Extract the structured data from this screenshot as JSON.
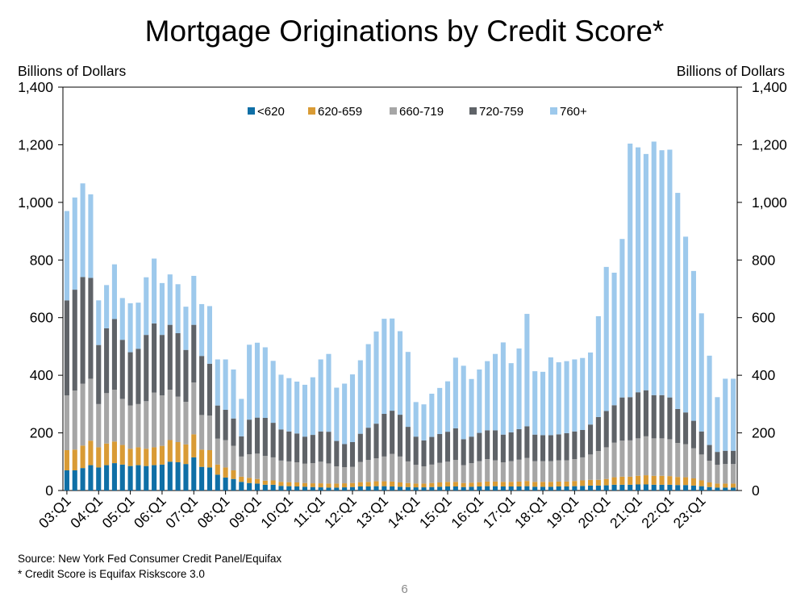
{
  "chart_data": {
    "type": "bar",
    "stacked": true,
    "title": "Mortgage Originations by Credit Score*",
    "ylabel_left": "Billions of Dollars",
    "ylabel_right": "Billions of Dollars",
    "ylim": [
      0,
      1400
    ],
    "yticks": [
      0,
      200,
      400,
      600,
      800,
      1000,
      1200,
      1400
    ],
    "ytick_labels": [
      "0",
      "200",
      "400",
      "600",
      "800",
      "1,000",
      "1,200",
      "1,400"
    ],
    "grid": false,
    "legend_position": "top-center",
    "xtick_labels": [
      "03:Q1",
      "04:Q1",
      "05:Q1",
      "06:Q1",
      "07:Q1",
      "08:Q1",
      "09:Q1",
      "10:Q1",
      "11:Q1",
      "12:Q1",
      "13:Q1",
      "14:Q1",
      "15:Q1",
      "16:Q1",
      "17:Q1",
      "18:Q1",
      "19:Q1",
      "20:Q1",
      "21:Q1",
      "22:Q1",
      "23:Q1"
    ],
    "series": [
      {
        "name": "<620",
        "color": "#0f6fa6",
        "values": [
          70,
          70,
          78,
          88,
          80,
          88,
          95,
          90,
          85,
          88,
          85,
          88,
          90,
          100,
          98,
          92,
          115,
          82,
          80,
          55,
          45,
          40,
          30,
          26,
          24,
          20,
          20,
          16,
          15,
          14,
          13,
          12,
          11,
          10,
          10,
          11,
          12,
          14,
          14,
          15,
          15,
          14,
          13,
          12,
          11,
          11,
          12,
          13,
          14,
          14,
          12,
          13,
          14,
          15,
          15,
          14,
          14,
          14,
          15,
          13,
          13,
          13,
          14,
          14,
          15,
          16,
          17,
          17,
          18,
          20,
          20,
          20,
          21,
          21,
          20,
          20,
          20,
          19,
          19,
          17,
          15,
          12,
          10,
          10,
          10
        ]
      },
      {
        "name": "620-659",
        "color": "#d99b35",
        "values": [
          70,
          72,
          78,
          85,
          70,
          75,
          75,
          68,
          60,
          62,
          60,
          62,
          65,
          75,
          70,
          68,
          80,
          60,
          60,
          35,
          35,
          30,
          18,
          18,
          16,
          14,
          15,
          14,
          14,
          14,
          13,
          13,
          14,
          14,
          14,
          14,
          14,
          15,
          16,
          17,
          17,
          17,
          15,
          14,
          13,
          13,
          14,
          15,
          16,
          16,
          14,
          14,
          15,
          16,
          16,
          16,
          16,
          17,
          18,
          17,
          17,
          17,
          17,
          17,
          18,
          19,
          20,
          20,
          22,
          26,
          28,
          28,
          30,
          32,
          31,
          31,
          30,
          28,
          27,
          25,
          20,
          16,
          14,
          14,
          14
        ]
      },
      {
        "name": "660-719",
        "color": "#a6a6a6",
        "values": [
          190,
          205,
          215,
          215,
          150,
          175,
          180,
          160,
          150,
          150,
          165,
          190,
          175,
          175,
          158,
          148,
          180,
          120,
          120,
          90,
          95,
          85,
          70,
          82,
          88,
          86,
          80,
          74,
          72,
          70,
          67,
          70,
          75,
          70,
          60,
          56,
          56,
          70,
          76,
          80,
          86,
          96,
          90,
          75,
          65,
          60,
          64,
          68,
          70,
          76,
          62,
          68,
          73,
          78,
          74,
          68,
          72,
          76,
          80,
          72,
          72,
          72,
          74,
          74,
          76,
          80,
          88,
          100,
          110,
          120,
          125,
          126,
          130,
          135,
          130,
          130,
          128,
          118,
          115,
          105,
          90,
          75,
          65,
          68,
          68
        ]
      },
      {
        "name": "720-759",
        "color": "#5f6368",
        "values": [
          330,
          350,
          370,
          350,
          205,
          225,
          245,
          205,
          185,
          192,
          230,
          240,
          210,
          225,
          220,
          180,
          200,
          205,
          180,
          115,
          105,
          95,
          70,
          120,
          125,
          132,
          120,
          108,
          104,
          100,
          94,
          98,
          105,
          110,
          88,
          80,
          86,
          98,
          112,
          120,
          148,
          150,
          145,
          120,
          98,
          90,
          96,
          100,
          104,
          110,
          90,
          92,
          98,
          100,
          104,
          96,
          100,
          106,
          110,
          92,
          90,
          90,
          90,
          94,
          96,
          95,
          104,
          118,
          126,
          130,
          150,
          150,
          160,
          160,
          150,
          150,
          145,
          118,
          110,
          95,
          80,
          55,
          45,
          46,
          46
        ]
      },
      {
        "name": "760+",
        "color": "#9dc9ec",
        "values": [
          310,
          320,
          325,
          290,
          155,
          150,
          190,
          145,
          170,
          160,
          200,
          225,
          180,
          175,
          170,
          150,
          170,
          180,
          200,
          160,
          175,
          170,
          130,
          260,
          260,
          245,
          215,
          190,
          185,
          180,
          180,
          200,
          250,
          270,
          185,
          210,
          235,
          255,
          290,
          320,
          330,
          320,
          290,
          260,
          120,
          125,
          150,
          160,
          175,
          245,
          255,
          200,
          220,
          240,
          265,
          320,
          240,
          280,
          390,
          220,
          220,
          270,
          250,
          250,
          250,
          250,
          250,
          350,
          500,
          460,
          550,
          880,
          850,
          820,
          880,
          850,
          860,
          750,
          610,
          520,
          410,
          310,
          190,
          250,
          250
        ]
      }
    ]
  },
  "footer": {
    "source": "Source: New York Fed Consumer Credit Panel/Equifax",
    "note": "* Credit Score is Equifax Riskscore 3.0",
    "page": "6"
  }
}
